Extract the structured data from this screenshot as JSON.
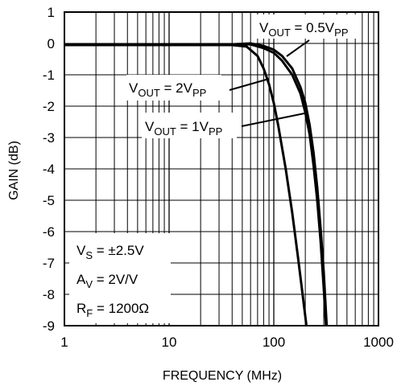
{
  "chart_data": {
    "type": "line",
    "title": "",
    "xlabel": "FREQUENCY (MHz)",
    "ylabel": "GAIN (dB)",
    "x_scale": "log",
    "xlim": [
      1,
      1000
    ],
    "ylim": [
      -9,
      1
    ],
    "x_ticks": [
      1,
      10,
      100,
      1000
    ],
    "x_tick_labels": [
      "1",
      "10",
      "100",
      "1000"
    ],
    "y_ticks": [
      1,
      0,
      -1,
      -2,
      -3,
      -4,
      -5,
      -6,
      -7,
      -8,
      -9
    ],
    "y_tick_labels": [
      "1",
      "0",
      "-1",
      "-2",
      "-3",
      "-4",
      "-5",
      "-6",
      "-7",
      "-8",
      "-9"
    ],
    "grid": true,
    "line_color": "#000000",
    "series": [
      {
        "name": "VOUT = 0.5VPP",
        "label": {
          "main": "V",
          "sub": "OUT",
          "mid": " = 0.5V",
          "tail": "PP"
        },
        "points": [
          [
            1,
            -0.05
          ],
          [
            20,
            -0.05
          ],
          [
            40,
            -0.03
          ],
          [
            60,
            0.0
          ],
          [
            80,
            -0.08
          ],
          [
            100,
            -0.2
          ],
          [
            120,
            -0.4
          ],
          [
            150,
            -0.8
          ],
          [
            180,
            -1.4
          ],
          [
            200,
            -1.9
          ],
          [
            220,
            -2.6
          ],
          [
            240,
            -3.5
          ],
          [
            260,
            -4.6
          ],
          [
            280,
            -5.9
          ],
          [
            300,
            -7.3
          ],
          [
            320,
            -9.0
          ]
        ]
      },
      {
        "name": "VOUT = 1VPP",
        "label": {
          "main": "V",
          "sub": "OUT",
          "mid": " = 1V",
          "tail": "PP"
        },
        "points": [
          [
            1,
            -0.05
          ],
          [
            20,
            -0.05
          ],
          [
            40,
            -0.03
          ],
          [
            60,
            -0.03
          ],
          [
            80,
            -0.15
          ],
          [
            100,
            -0.3
          ],
          [
            120,
            -0.55
          ],
          [
            150,
            -1.0
          ],
          [
            180,
            -1.6
          ],
          [
            200,
            -2.2
          ],
          [
            220,
            -2.9
          ],
          [
            240,
            -3.9
          ],
          [
            260,
            -5.0
          ],
          [
            280,
            -6.3
          ],
          [
            300,
            -7.8
          ],
          [
            315,
            -9.0
          ]
        ]
      },
      {
        "name": "VOUT = 2VPP",
        "label": {
          "main": "V",
          "sub": "OUT",
          "mid": " = 2V",
          "tail": "PP"
        },
        "points": [
          [
            1,
            -0.05
          ],
          [
            20,
            -0.05
          ],
          [
            40,
            -0.05
          ],
          [
            55,
            -0.1
          ],
          [
            70,
            -0.4
          ],
          [
            80,
            -0.8
          ],
          [
            90,
            -1.3
          ],
          [
            100,
            -1.9
          ],
          [
            110,
            -2.6
          ],
          [
            130,
            -4.0
          ],
          [
            150,
            -5.4
          ],
          [
            170,
            -6.8
          ],
          [
            190,
            -8.1
          ],
          [
            205,
            -9.0
          ]
        ]
      }
    ],
    "annotation": {
      "vs": {
        "main": "V",
        "sub": "S",
        "rest": " = ±2.5V"
      },
      "av": {
        "main": "A",
        "sub": "V",
        "rest": " = 2V/V"
      },
      "rf": {
        "main": "R",
        "sub": "F",
        "rest": " = 1200Ω"
      }
    }
  }
}
